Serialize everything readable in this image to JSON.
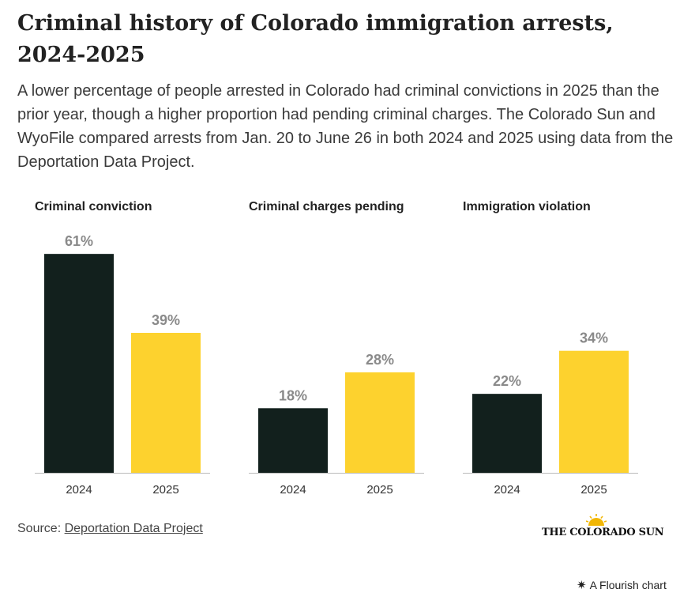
{
  "title": "Criminal history of Colorado immigration arrests, 2024-2025",
  "subtitle": "A lower percentage of people arrested in Colorado had criminal convictions in 2025 than the prior year, though a higher proportion had pending criminal charges. The Colorado Sun and WyoFile compared arrests from Jan. 20 to June 26 in both 2024 and 2025 using data from the Deportation Data Project.",
  "source": {
    "label": "Source:",
    "link_text": "Deportation Data Project"
  },
  "logo": {
    "text": "THE COLORADO SUN",
    "icon": "sun-icon"
  },
  "footer": {
    "text": "A Flourish chart",
    "icon": "flourish-star-icon"
  },
  "colors": {
    "2024": "#12201d",
    "2025": "#fdd22e",
    "label": "#8a8a8a",
    "axis": "#bbbbbb"
  },
  "chart_data": [
    {
      "type": "bar",
      "title": "Criminal conviction",
      "categories": [
        "2024",
        "2025"
      ],
      "values": [
        61,
        39
      ],
      "data_labels": [
        "61%",
        "39%"
      ],
      "ylim": [
        0,
        65
      ]
    },
    {
      "type": "bar",
      "title": "Criminal charges pending",
      "categories": [
        "2024",
        "2025"
      ],
      "values": [
        18,
        28
      ],
      "data_labels": [
        "18%",
        "28%"
      ],
      "ylim": [
        0,
        65
      ]
    },
    {
      "type": "bar",
      "title": "Immigration violation",
      "categories": [
        "2024",
        "2025"
      ],
      "values": [
        22,
        34
      ],
      "data_labels": [
        "22%",
        "34%"
      ],
      "ylim": [
        0,
        65
      ]
    }
  ]
}
